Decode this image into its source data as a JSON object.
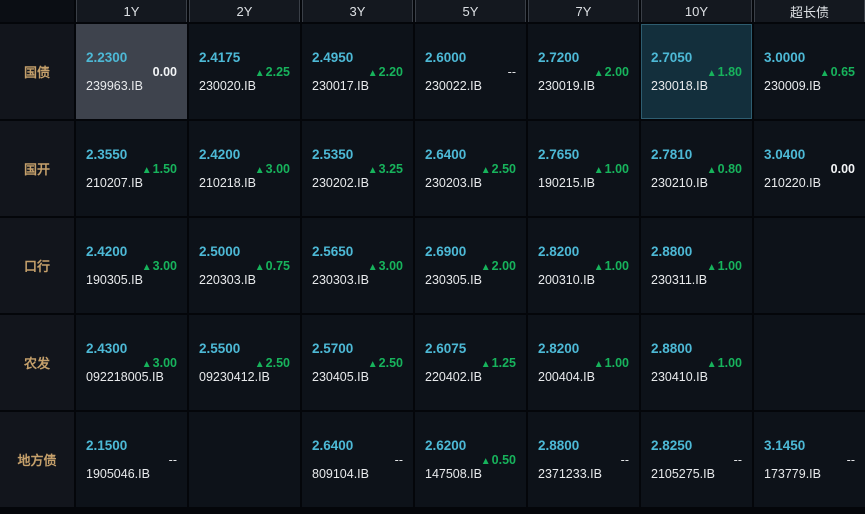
{
  "icons": {
    "up_arrow": "▲"
  },
  "colors": {
    "yield_text": "#4db9d6",
    "up_green": "#17b35c",
    "label_tan": "#c5a06b",
    "cell_bg": "#0d1219",
    "selected_cell_bg": "#3e434d",
    "focus_cell_bg": "#132f3c"
  },
  "table": {
    "column_headers": [
      "1Y",
      "2Y",
      "3Y",
      "5Y",
      "7Y",
      "10Y",
      "超长债"
    ],
    "rows": [
      {
        "label": "国债",
        "cells": [
          {
            "yield": "2.2300",
            "code": "239963.IB",
            "change": "0.00",
            "direction": "flat",
            "highlight": "selected"
          },
          {
            "yield": "2.4175",
            "code": "230020.IB",
            "change": "2.25",
            "direction": "up"
          },
          {
            "yield": "2.4950",
            "code": "230017.IB",
            "change": "2.20",
            "direction": "up"
          },
          {
            "yield": "2.6000",
            "code": "230022.IB",
            "change": "--",
            "direction": "none"
          },
          {
            "yield": "2.7200",
            "code": "230019.IB",
            "change": "2.00",
            "direction": "up"
          },
          {
            "yield": "2.7050",
            "code": "230018.IB",
            "change": "1.80",
            "direction": "up",
            "highlight": "focus"
          },
          {
            "yield": "3.0000",
            "code": "230009.IB",
            "change": "0.65",
            "direction": "up"
          }
        ]
      },
      {
        "label": "国开",
        "cells": [
          {
            "yield": "2.3550",
            "code": "210207.IB",
            "change": "1.50",
            "direction": "up"
          },
          {
            "yield": "2.4200",
            "code": "210218.IB",
            "change": "3.00",
            "direction": "up"
          },
          {
            "yield": "2.5350",
            "code": "230202.IB",
            "change": "3.25",
            "direction": "up"
          },
          {
            "yield": "2.6400",
            "code": "230203.IB",
            "change": "2.50",
            "direction": "up"
          },
          {
            "yield": "2.7650",
            "code": "190215.IB",
            "change": "1.00",
            "direction": "up"
          },
          {
            "yield": "2.7810",
            "code": "230210.IB",
            "change": "0.80",
            "direction": "up"
          },
          {
            "yield": "3.0400",
            "code": "210220.IB",
            "change": "0.00",
            "direction": "flat"
          }
        ]
      },
      {
        "label": "口行",
        "cells": [
          {
            "yield": "2.4200",
            "code": "190305.IB",
            "change": "3.00",
            "direction": "up"
          },
          {
            "yield": "2.5000",
            "code": "220303.IB",
            "change": "0.75",
            "direction": "up"
          },
          {
            "yield": "2.5650",
            "code": "230303.IB",
            "change": "3.00",
            "direction": "up"
          },
          {
            "yield": "2.6900",
            "code": "230305.IB",
            "change": "2.00",
            "direction": "up"
          },
          {
            "yield": "2.8200",
            "code": "200310.IB",
            "change": "1.00",
            "direction": "up"
          },
          {
            "yield": "2.8800",
            "code": "230311.IB",
            "change": "1.00",
            "direction": "up"
          },
          null
        ]
      },
      {
        "label": "农发",
        "cells": [
          {
            "yield": "2.4300",
            "code": "092218005.IB",
            "change": "3.00",
            "direction": "up"
          },
          {
            "yield": "2.5500",
            "code": "09230412.IB",
            "change": "2.50",
            "direction": "up"
          },
          {
            "yield": "2.5700",
            "code": "230405.IB",
            "change": "2.50",
            "direction": "up"
          },
          {
            "yield": "2.6075",
            "code": "220402.IB",
            "change": "1.25",
            "direction": "up"
          },
          {
            "yield": "2.8200",
            "code": "200404.IB",
            "change": "1.00",
            "direction": "up"
          },
          {
            "yield": "2.8800",
            "code": "230410.IB",
            "change": "1.00",
            "direction": "up"
          },
          null
        ]
      },
      {
        "label": "地方债",
        "cells": [
          {
            "yield": "2.1500",
            "code": "1905046.IB",
            "change": "--",
            "direction": "none"
          },
          null,
          {
            "yield": "2.6400",
            "code": "809104.IB",
            "change": "--",
            "direction": "none"
          },
          {
            "yield": "2.6200",
            "code": "147508.IB",
            "change": "0.50",
            "direction": "up"
          },
          {
            "yield": "2.8800",
            "code": "2371233.IB",
            "change": "--",
            "direction": "none"
          },
          {
            "yield": "2.8250",
            "code": "2105275.IB",
            "change": "--",
            "direction": "none"
          },
          {
            "yield": "3.1450",
            "code": "173779.IB",
            "change": "--",
            "direction": "none"
          }
        ]
      }
    ]
  }
}
